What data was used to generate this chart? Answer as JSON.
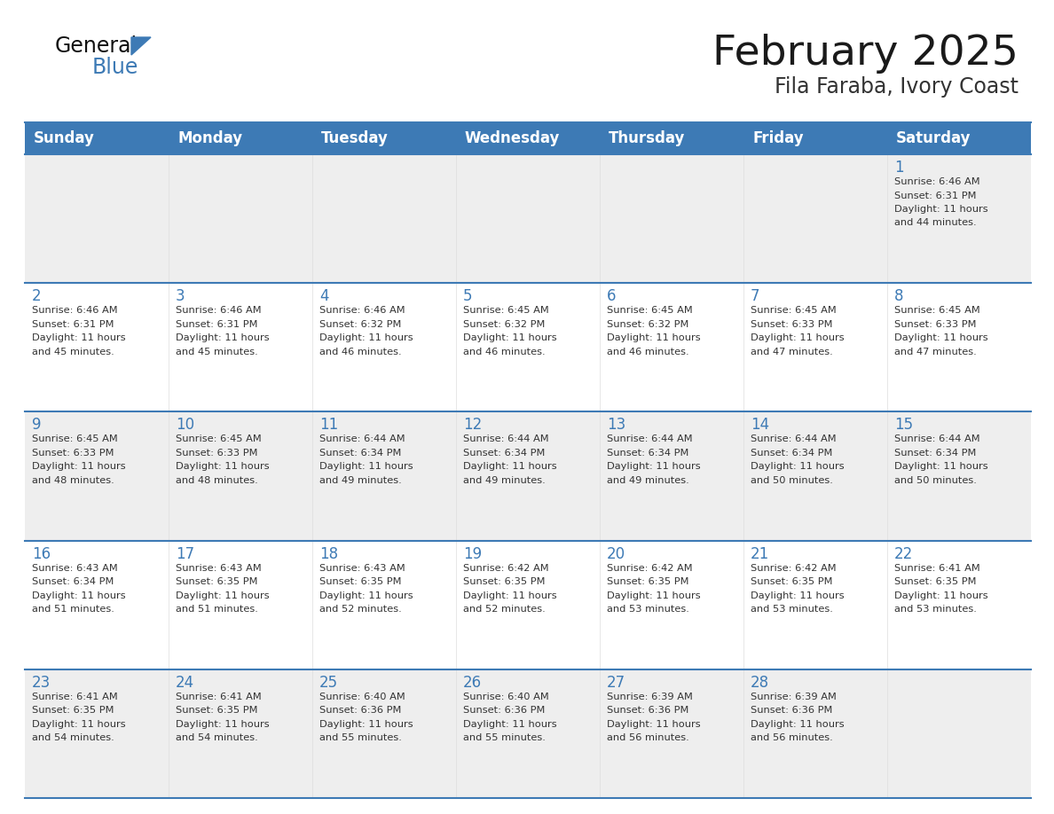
{
  "title": "February 2025",
  "subtitle": "Fila Faraba, Ivory Coast",
  "header_bg_color": "#3d7ab5",
  "header_text_color": "#ffffff",
  "cell_bg_color_light": "#eeeeee",
  "cell_bg_color_white": "#ffffff",
  "border_color": "#3d7ab5",
  "day_headers": [
    "Sunday",
    "Monday",
    "Tuesday",
    "Wednesday",
    "Thursday",
    "Friday",
    "Saturday"
  ],
  "title_color": "#1a1a1a",
  "subtitle_color": "#333333",
  "day_num_color": "#3d7ab5",
  "info_color": "#333333",
  "calendar_data": [
    [
      null,
      null,
      null,
      null,
      null,
      null,
      {
        "day": "1",
        "sunrise": "6:46 AM",
        "sunset": "6:31 PM",
        "daylight_hours": "11 hours",
        "daylight_mins": "and 44 minutes."
      }
    ],
    [
      {
        "day": "2",
        "sunrise": "6:46 AM",
        "sunset": "6:31 PM",
        "daylight_hours": "11 hours",
        "daylight_mins": "and 45 minutes."
      },
      {
        "day": "3",
        "sunrise": "6:46 AM",
        "sunset": "6:31 PM",
        "daylight_hours": "11 hours",
        "daylight_mins": "and 45 minutes."
      },
      {
        "day": "4",
        "sunrise": "6:46 AM",
        "sunset": "6:32 PM",
        "daylight_hours": "11 hours",
        "daylight_mins": "and 46 minutes."
      },
      {
        "day": "5",
        "sunrise": "6:45 AM",
        "sunset": "6:32 PM",
        "daylight_hours": "11 hours",
        "daylight_mins": "and 46 minutes."
      },
      {
        "day": "6",
        "sunrise": "6:45 AM",
        "sunset": "6:32 PM",
        "daylight_hours": "11 hours",
        "daylight_mins": "and 46 minutes."
      },
      {
        "day": "7",
        "sunrise": "6:45 AM",
        "sunset": "6:33 PM",
        "daylight_hours": "11 hours",
        "daylight_mins": "and 47 minutes."
      },
      {
        "day": "8",
        "sunrise": "6:45 AM",
        "sunset": "6:33 PM",
        "daylight_hours": "11 hours",
        "daylight_mins": "and 47 minutes."
      }
    ],
    [
      {
        "day": "9",
        "sunrise": "6:45 AM",
        "sunset": "6:33 PM",
        "daylight_hours": "11 hours",
        "daylight_mins": "and 48 minutes."
      },
      {
        "day": "10",
        "sunrise": "6:45 AM",
        "sunset": "6:33 PM",
        "daylight_hours": "11 hours",
        "daylight_mins": "and 48 minutes."
      },
      {
        "day": "11",
        "sunrise": "6:44 AM",
        "sunset": "6:34 PM",
        "daylight_hours": "11 hours",
        "daylight_mins": "and 49 minutes."
      },
      {
        "day": "12",
        "sunrise": "6:44 AM",
        "sunset": "6:34 PM",
        "daylight_hours": "11 hours",
        "daylight_mins": "and 49 minutes."
      },
      {
        "day": "13",
        "sunrise": "6:44 AM",
        "sunset": "6:34 PM",
        "daylight_hours": "11 hours",
        "daylight_mins": "and 49 minutes."
      },
      {
        "day": "14",
        "sunrise": "6:44 AM",
        "sunset": "6:34 PM",
        "daylight_hours": "11 hours",
        "daylight_mins": "and 50 minutes."
      },
      {
        "day": "15",
        "sunrise": "6:44 AM",
        "sunset": "6:34 PM",
        "daylight_hours": "11 hours",
        "daylight_mins": "and 50 minutes."
      }
    ],
    [
      {
        "day": "16",
        "sunrise": "6:43 AM",
        "sunset": "6:34 PM",
        "daylight_hours": "11 hours",
        "daylight_mins": "and 51 minutes."
      },
      {
        "day": "17",
        "sunrise": "6:43 AM",
        "sunset": "6:35 PM",
        "daylight_hours": "11 hours",
        "daylight_mins": "and 51 minutes."
      },
      {
        "day": "18",
        "sunrise": "6:43 AM",
        "sunset": "6:35 PM",
        "daylight_hours": "11 hours",
        "daylight_mins": "and 52 minutes."
      },
      {
        "day": "19",
        "sunrise": "6:42 AM",
        "sunset": "6:35 PM",
        "daylight_hours": "11 hours",
        "daylight_mins": "and 52 minutes."
      },
      {
        "day": "20",
        "sunrise": "6:42 AM",
        "sunset": "6:35 PM",
        "daylight_hours": "11 hours",
        "daylight_mins": "and 53 minutes."
      },
      {
        "day": "21",
        "sunrise": "6:42 AM",
        "sunset": "6:35 PM",
        "daylight_hours": "11 hours",
        "daylight_mins": "and 53 minutes."
      },
      {
        "day": "22",
        "sunrise": "6:41 AM",
        "sunset": "6:35 PM",
        "daylight_hours": "11 hours",
        "daylight_mins": "and 53 minutes."
      }
    ],
    [
      {
        "day": "23",
        "sunrise": "6:41 AM",
        "sunset": "6:35 PM",
        "daylight_hours": "11 hours",
        "daylight_mins": "and 54 minutes."
      },
      {
        "day": "24",
        "sunrise": "6:41 AM",
        "sunset": "6:35 PM",
        "daylight_hours": "11 hours",
        "daylight_mins": "and 54 minutes."
      },
      {
        "day": "25",
        "sunrise": "6:40 AM",
        "sunset": "6:36 PM",
        "daylight_hours": "11 hours",
        "daylight_mins": "and 55 minutes."
      },
      {
        "day": "26",
        "sunrise": "6:40 AM",
        "sunset": "6:36 PM",
        "daylight_hours": "11 hours",
        "daylight_mins": "and 55 minutes."
      },
      {
        "day": "27",
        "sunrise": "6:39 AM",
        "sunset": "6:36 PM",
        "daylight_hours": "11 hours",
        "daylight_mins": "and 56 minutes."
      },
      {
        "day": "28",
        "sunrise": "6:39 AM",
        "sunset": "6:36 PM",
        "daylight_hours": "11 hours",
        "daylight_mins": "and 56 minutes."
      },
      null
    ]
  ]
}
